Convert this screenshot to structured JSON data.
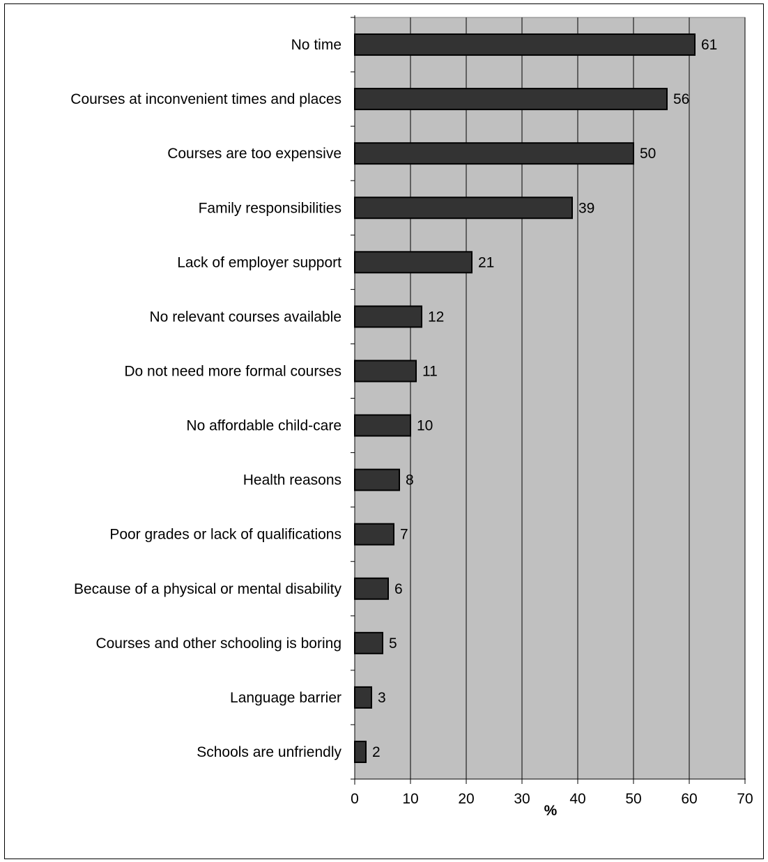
{
  "chart_data": {
    "type": "bar",
    "orientation": "horizontal",
    "categories": [
      "No time",
      "Courses at inconvenient times and places",
      "Courses are too expensive",
      "Family responsibilities",
      "Lack of employer support",
      "No relevant courses available",
      "Do not need more formal courses",
      "No affordable child-care",
      "Health reasons",
      "Poor grades or lack of qualifications",
      "Because of a physical or mental disability",
      "Courses and other schooling is boring",
      "Language barrier",
      "Schools are unfriendly"
    ],
    "values": [
      61,
      56,
      50,
      39,
      21,
      12,
      11,
      10,
      8,
      7,
      6,
      5,
      3,
      2
    ],
    "data_labels": [
      "61",
      "56",
      "50",
      "39",
      "21",
      "12",
      "11",
      "10",
      "8",
      "7",
      "6",
      "5",
      "3",
      "2"
    ],
    "title": "",
    "xlabel": "%",
    "ylabel": "",
    "xlim": [
      0,
      70
    ],
    "xticks": [
      "0",
      "10",
      "20",
      "30",
      "40",
      "50",
      "60",
      "70"
    ],
    "grid": "vertical",
    "legend": "none",
    "colors": {
      "bar": "#333333",
      "bar_edge": "#000000",
      "plot_bg": "#c0c0c0",
      "gridline": "#000000"
    }
  }
}
